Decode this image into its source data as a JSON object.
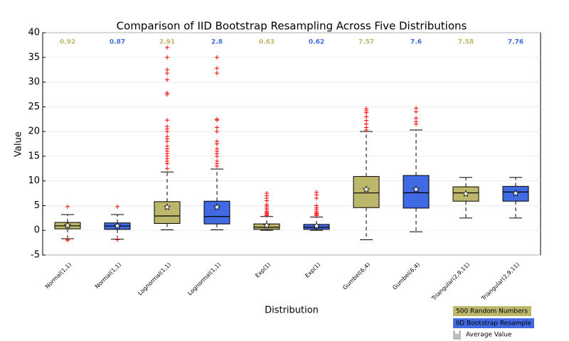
{
  "chart_data": {
    "type": "box",
    "title": "Comparison of IID Bootstrap Resampling Across Five Distributions",
    "x_label": "Distribution",
    "y_label": "Value",
    "ylim": [
      -5,
      40
    ],
    "yticks": [
      -5,
      0,
      5,
      10,
      15,
      20,
      25,
      30,
      35,
      40
    ],
    "grid": true,
    "categories": [
      "Normal(1,1)",
      "Normal(1,1)",
      "Lognormal(1,1)",
      "Lognormal(1,1)",
      "Exp(1)",
      "Exp(1)",
      "Gumbel(6,4)",
      "Gumbel(6,4)",
      "Triangular(2,9,11)",
      "Triangular(2,9,11)"
    ],
    "boxes": [
      {
        "color": "#bdb76b",
        "whislo": -1.7,
        "q1": 0.3,
        "med": 0.92,
        "q3": 1.6,
        "whishi": 3.2,
        "mean": 1.0,
        "fliers": [
          4.8,
          -1.9,
          -2.0
        ]
      },
      {
        "color": "#4169e1",
        "whislo": -1.8,
        "q1": 0.2,
        "med": 0.87,
        "q3": 1.5,
        "whishi": 3.2,
        "mean": 0.9,
        "fliers": [
          4.8,
          -1.9
        ]
      },
      {
        "color": "#bdb76b",
        "whislo": 0.1,
        "q1": 1.4,
        "med": 2.91,
        "q3": 5.8,
        "whishi": 11.8,
        "mean": 4.7,
        "fliers": [
          12.5,
          13.5,
          14,
          14.5,
          15,
          15.5,
          16,
          16.5,
          17,
          18,
          18.5,
          19,
          20,
          20.5,
          21,
          22.3,
          27.5,
          27.8,
          30.5,
          31.8,
          32.5,
          35,
          37
        ]
      },
      {
        "color": "#4169e1",
        "whislo": 0.1,
        "q1": 1.3,
        "med": 2.8,
        "q3": 5.9,
        "whishi": 12.4,
        "mean": 4.7,
        "fliers": [
          13,
          13.5,
          14,
          15,
          15.5,
          16,
          16.5,
          17.5,
          18,
          20,
          20.8,
          22.3,
          22.5,
          31.8,
          32.8,
          35
        ]
      },
      {
        "color": "#bdb76b",
        "whislo": 0,
        "q1": 0.2,
        "med": 0.63,
        "q3": 1.3,
        "whishi": 2.8,
        "mean": 1.0,
        "fliers": [
          3,
          3.2,
          3.4,
          3.6,
          3.8,
          4.2,
          4.5,
          4.9,
          5.2,
          6,
          6.5,
          7,
          7.5
        ]
      },
      {
        "color": "#4169e1",
        "whislo": 0,
        "q1": 0.2,
        "med": 0.62,
        "q3": 1.2,
        "whishi": 2.7,
        "mean": 0.9,
        "fliers": [
          3,
          3.2,
          3.4,
          3.6,
          3.9,
          4.3,
          4.6,
          5,
          6.5,
          7.2,
          7.7
        ]
      },
      {
        "color": "#bdb76b",
        "whislo": -1.9,
        "q1": 4.6,
        "med": 7.57,
        "q3": 10.9,
        "whishi": 20,
        "mean": 8.3,
        "fliers": [
          20.3,
          20.8,
          21.5,
          22.2,
          23,
          23.8,
          24.2,
          24.6
        ]
      },
      {
        "color": "#4169e1",
        "whislo": -0.3,
        "q1": 4.5,
        "med": 7.6,
        "q3": 11.1,
        "whishi": 20.3,
        "mean": 8.3,
        "fliers": [
          21.5,
          22,
          22.7,
          24,
          24.7
        ]
      },
      {
        "color": "#bdb76b",
        "whislo": 2.5,
        "q1": 5.9,
        "med": 7.58,
        "q3": 8.8,
        "whishi": 10.7,
        "mean": 7.4,
        "fliers": []
      },
      {
        "color": "#4169e1",
        "whislo": 2.5,
        "q1": 5.9,
        "med": 7.76,
        "q3": 8.9,
        "whishi": 10.7,
        "mean": 7.5,
        "fliers": []
      }
    ],
    "flier_color": "#ff0000",
    "legend": [
      {
        "label": "500 Random Numbers",
        "color": "#bdb76b"
      },
      {
        "label": "IID Bootstrap Resample",
        "color": "#4169e1"
      }
    ],
    "mean_label": "Average Value",
    "mean_legend_color": "#bbbbbb"
  }
}
